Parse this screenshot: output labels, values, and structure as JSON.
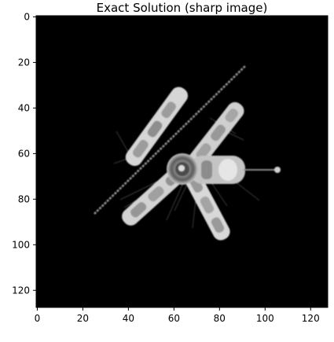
{
  "chart_data": {
    "type": "heatmap",
    "title": "Exact Solution (sharp image)",
    "xlabel": "",
    "ylabel": "",
    "xlim": [
      0,
      128
    ],
    "ylim": [
      128,
      0
    ],
    "grid": false,
    "colormap": "gray",
    "image_size": [
      128,
      128
    ],
    "x_ticks": [
      0,
      20,
      40,
      60,
      80,
      100,
      120
    ],
    "y_ticks": [
      0,
      20,
      40,
      60,
      80,
      100,
      120
    ],
    "x_tick_labels": [
      "0",
      "20",
      "40",
      "60",
      "80",
      "100",
      "120"
    ],
    "y_tick_labels": [
      "0",
      "20",
      "40",
      "60",
      "80",
      "100",
      "120"
    ],
    "background_color": "#000000",
    "subject": "satellite"
  }
}
